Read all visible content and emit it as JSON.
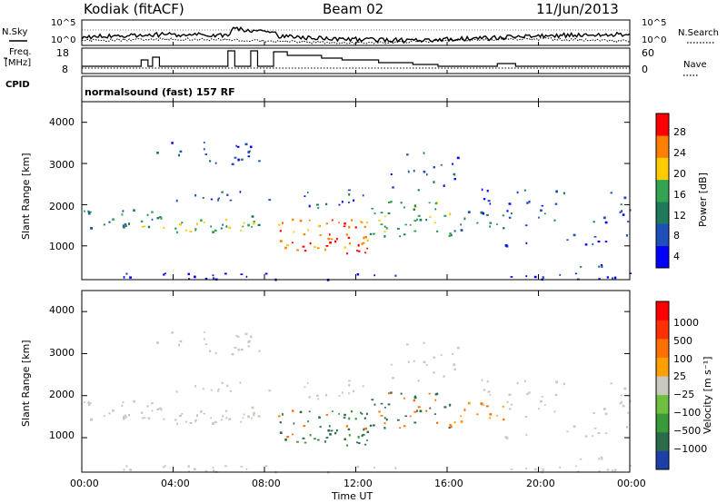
{
  "header": {
    "station": "Kodiak (fitACF)",
    "beam": "Beam 02",
    "date": "11/Jun/2013"
  },
  "top_panels": {
    "nsky_label": "N.Sky",
    "nsearch_label": "N.Search",
    "noise_ticks_left": [
      "10^5",
      "10^0"
    ],
    "noise_ticks_right": [
      "10^5",
      "10^0"
    ],
    "freq_label_line1": "Freq.",
    "freq_label_line2": "[MHz]",
    "freq_ticks": [
      "18",
      "8"
    ],
    "nave_label": "Nave",
    "nave_ticks": [
      "60",
      "0"
    ],
    "cpid_label": "CPID",
    "cpid_text": "normalsound (fast) 157 RF"
  },
  "chart_data": [
    {
      "type": "heatmap",
      "panel": "power",
      "ylabel": "Slant Range [km]",
      "xlabel": "",
      "yticks": [
        "4000",
        "3000",
        "2000",
        "1000"
      ],
      "ylim": [
        180,
        4500
      ],
      "colorbar": {
        "label": "Power [dB]",
        "ticks": [
          "28",
          "24",
          "20",
          "16",
          "12",
          "8",
          "4"
        ],
        "colors": [
          "#0000ff",
          "#1f4fb8",
          "#1e7a5a",
          "#33a353",
          "#ffcc00",
          "#ff8000",
          "#ff0000"
        ]
      }
    },
    {
      "type": "heatmap",
      "panel": "velocity",
      "ylabel": "Slant Range [km]",
      "xlabel": "Time UT",
      "yticks": [
        "4000",
        "3000",
        "2000",
        "1000"
      ],
      "ylim": [
        180,
        4500
      ],
      "xticks": [
        "00:00",
        "04:00",
        "08:00",
        "12:00",
        "16:00",
        "20:00",
        "00:00"
      ],
      "colorbar": {
        "label": "Velocity [m s⁻¹]",
        "ticks": [
          "1000",
          "500",
          "100",
          "25",
          "−25",
          "−100",
          "−500",
          "−1000"
        ],
        "colors": [
          "#1c3fa8",
          "#2c6b4a",
          "#3a9a3a",
          "#70c040",
          "#c8c8c0",
          "#ffa000",
          "#ff7000",
          "#ff3000",
          "#ff0000"
        ]
      }
    }
  ]
}
